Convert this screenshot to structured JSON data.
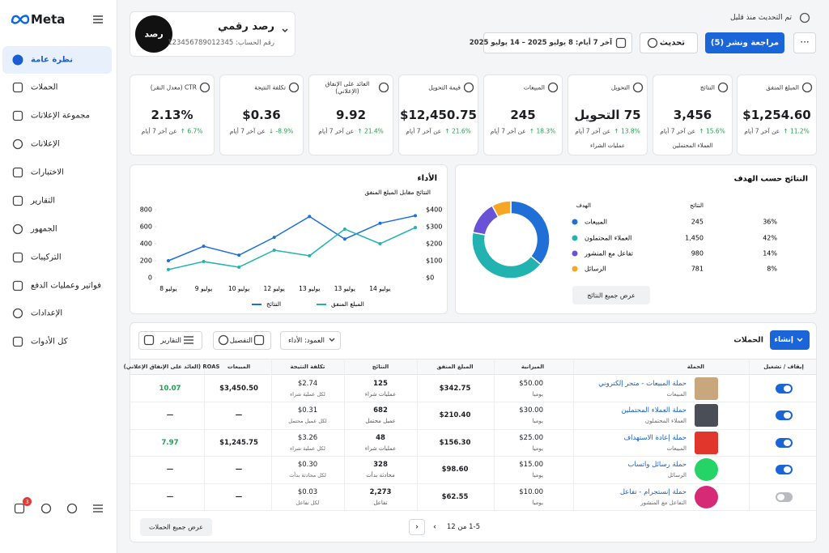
{
  "sidebar": {
    "logo": "Meta",
    "notification_count": "3",
    "nav": [
      "نظرة عامة",
      "الحملات",
      "مجموعة الإعلانات",
      "الإعلانات",
      "الاختبارات",
      "التقارير",
      "الجمهور",
      "التركيبات",
      "فواتير وعمليات الدفع",
      "الإعدادات",
      "كل الأدوات"
    ]
  },
  "account": {
    "logo": "رصد",
    "name": "رصد رقمي",
    "number": "رقم الحساب: 123456789012345"
  },
  "header": {
    "updated": "تم التحديث منذ قليل",
    "date_range": "آخر 7 أيام: 8 يوليو 2025 – 14 يوليو 2025",
    "refresh": "تحديث",
    "review_publish": "مراجعة ونشر (5)"
  },
  "kpi_note": "عن آخر 7 أيام",
  "kpis": [
    {
      "label": "المبلغ المنفق",
      "value": "$1,254.60",
      "change": "11.2%",
      "direction": "up"
    },
    {
      "label": "النتائج",
      "value": "3,456",
      "change": "15.6%",
      "direction": "up",
      "extra": "العملاء المحتملين"
    },
    {
      "label": "التحويل",
      "value": "75 التحويل",
      "change": "13.8%",
      "direction": "up",
      "extra": "عمليات الشراء"
    },
    {
      "label": "المبيعات",
      "value": "245",
      "change": "18.3%",
      "direction": "up"
    },
    {
      "label": "قيمة التحويل",
      "value": "$12,450.75",
      "change": "21.6%",
      "direction": "up"
    },
    {
      "label": "العائد على الإنفاق (الإعلاني)",
      "value": "9.92",
      "change": "21.4%",
      "direction": "up"
    },
    {
      "label": "تكلفة النتيجة",
      "value": "$0.36",
      "change": "-8.9%",
      "direction": "down"
    },
    {
      "label": "CTR (معدل النقر)",
      "value": "2.13%",
      "change": "6.7%",
      "direction": "up"
    }
  ],
  "performance_chart": {
    "type": "line",
    "title": "الأداء",
    "subtitle": "النتائج مقابل المبلغ المنفق",
    "categories": [
      "8 يوليو",
      "9 يوليو",
      "10 يوليو",
      "12 يوليو",
      "13 يوليو",
      "13 يوليو",
      "14 يوليو",
      null
    ],
    "series": [
      {
        "name": "النتائج",
        "color": "#1f6fd6",
        "values": [
          200,
          370,
          265,
          475,
          720,
          455,
          640,
          730
        ]
      },
      {
        "name": "المبلغ المنفق",
        "color": "#22b2b0",
        "axis": "y2",
        "values": [
          48,
          95,
          62,
          162,
          129,
          286,
          200,
          295
        ]
      }
    ],
    "ylim": [
      0,
      800
    ],
    "yticks": [
      0,
      200,
      400,
      600,
      800
    ],
    "y2lim": [
      0,
      400
    ],
    "y2ticks": [
      {
        "value": 0,
        "label": "$0"
      },
      {
        "value": 100,
        "label": "$100"
      },
      {
        "value": 200,
        "label": "$200"
      },
      {
        "value": 300,
        "label": "$300"
      },
      {
        "value": 400,
        "label": "$400"
      }
    ]
  },
  "goals_chart": {
    "type": "pie",
    "title": "النتائج حسب الهدف",
    "goal_header": "الهدف",
    "results_header": "النتائج",
    "categories": [
      "المبيعات",
      "العملاء المحتملون",
      "تفاعل مع المنشور",
      "الرسائل"
    ],
    "values": [
      36,
      42,
      14,
      8
    ],
    "value_labels": [
      "36%",
      "42%",
      "14%",
      "8%"
    ],
    "results": [
      "245",
      "1,450",
      "980",
      "781"
    ],
    "colors": [
      "#1f6fd6",
      "#22b2b0",
      "#6a52d6",
      "#f5a623"
    ],
    "button": "عرض جميع النتائج"
  },
  "campaigns": {
    "title": "الحملات",
    "create": "إنشاء",
    "reports": "التقارير",
    "breakdown": "التفصيل",
    "columns_selector": "العمود: الأداء",
    "columns": [
      "إيقاف / تشغيل",
      "الحملة",
      "الميزانية",
      "المبلغ المنفق",
      "النتائج",
      "تكلفة النتيجة",
      "المبيعات",
      "ROAS (العائد على الإنفاق الإعلاني)"
    ],
    "rows": [
      {
        "active": true,
        "thumb": "#c9a77c",
        "name": "حملة المبيعات - متجر إلكتروني",
        "objective": "المبيعات",
        "budget": "$50.00",
        "period": "يوميا",
        "spent": "$342.75",
        "results": "125",
        "result_type": "عمليات شراء",
        "cost": "$2.74",
        "cost_type": "لكل عملية شراء",
        "sales": "$3,450.50",
        "roas": "10.07"
      },
      {
        "active": true,
        "thumb": "#4a4f57",
        "name": "حملة العملاء المحتملين",
        "objective": "العملاء المحتملون",
        "budget": "$30.00",
        "period": "يوميا",
        "spent": "$210.40",
        "results": "682",
        "result_type": "عميل محتمل",
        "cost": "$0.31",
        "cost_type": "لكل عميل محتمل",
        "sales": "—",
        "roas": "—"
      },
      {
        "active": true,
        "thumb": "#e0362c",
        "name": "حملة إعادة الاستهداف",
        "objective": "المبيعات",
        "budget": "$25.00",
        "period": "يوميا",
        "spent": "$156.30",
        "results": "48",
        "result_type": "عمليات شراء",
        "cost": "$3.26",
        "cost_type": "لكل عملية شراء",
        "sales": "$1,245.75",
        "roas": "7.97"
      },
      {
        "active": true,
        "thumb": "#25d366",
        "name": "حملة رسائل واتساب",
        "objective": "الرسائل",
        "budget": "$15.00",
        "period": "يوميا",
        "spent": "$98.60",
        "results": "328",
        "result_type": "محادثة بدأت",
        "cost": "$0.30",
        "cost_type": "لكل محادثة بدأت",
        "sales": "—",
        "roas": "—"
      },
      {
        "active": false,
        "thumb": "#d62976",
        "name": "حملة إنستجرام - تفاعل",
        "objective": "التفاعل مع المنشور",
        "budget": "$10.00",
        "period": "يوميا",
        "spent": "$62.55",
        "results": "2,273",
        "result_type": "تفاعل",
        "cost": "$0.03",
        "cost_type": "لكل تفاعل",
        "sales": "—",
        "roas": "—"
      }
    ],
    "view_all": "عرض جميع الحملات",
    "pagination": "1-5 من 12"
  }
}
